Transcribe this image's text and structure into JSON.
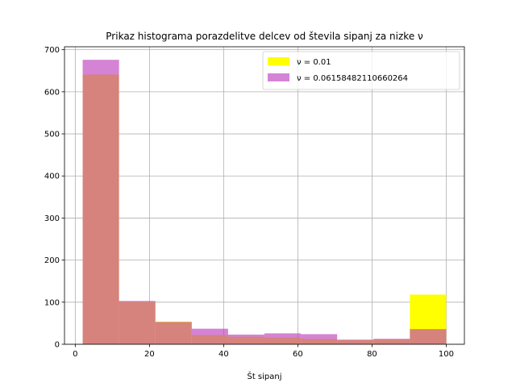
{
  "chart_data": {
    "type": "bar",
    "title": "Prikaz histograma porazdelitve delcev od števila sipanj za nizke ν",
    "xlabel": "Št sipanj",
    "ylabel": "",
    "xlim": [
      -2.9,
      104.9
    ],
    "ylim": [
      0,
      707
    ],
    "xticks": [
      0,
      20,
      40,
      60,
      80,
      100
    ],
    "yticks": [
      0,
      100,
      200,
      300,
      400,
      500,
      600,
      700
    ],
    "grid": true,
    "legend_position": "top-right",
    "bin_edges": [
      2,
      11.8,
      21.6,
      31.4,
      41.2,
      51,
      60.8,
      70.6,
      80.4,
      90.2,
      100
    ],
    "series": [
      {
        "name": "ν = 0.01",
        "color": "#ffff00",
        "values": [
          641,
          101,
          54,
          22,
          18,
          16,
          13,
          10,
          12,
          118
        ]
      },
      {
        "name": "ν = 0.06158482110660264",
        "color": "#bf40bf",
        "opacity": 0.65,
        "values": [
          676,
          103,
          53,
          37,
          23,
          26,
          24,
          11,
          13,
          36
        ]
      }
    ]
  }
}
